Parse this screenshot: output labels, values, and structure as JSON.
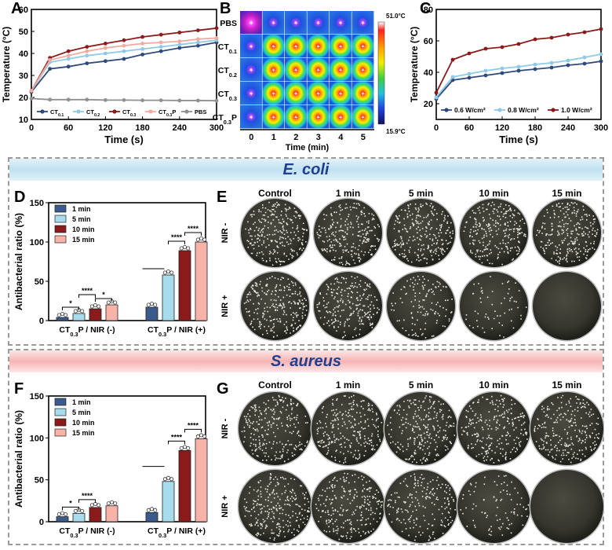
{
  "panels": {
    "A": "A",
    "B": "B",
    "C": "C",
    "D": "D",
    "E": "E",
    "F": "F",
    "G": "G"
  },
  "banners": {
    "ecoli": "E. coli",
    "saureus": "S. aureus"
  },
  "plate_grid": {
    "columns": [
      "Control",
      "1 min",
      "5 min",
      "10 min",
      "15 min"
    ],
    "rows": [
      "NIR -",
      "NIR +"
    ],
    "ecoli_density": [
      [
        260,
        250,
        250,
        250,
        250
      ],
      [
        250,
        230,
        130,
        60,
        0
      ]
    ],
    "saureus_density": [
      [
        250,
        250,
        250,
        240,
        240
      ],
      [
        250,
        240,
        190,
        90,
        0
      ]
    ]
  },
  "thermal": {
    "rows": [
      "PBS",
      "CT0.1",
      "CT0.2",
      "CT0.3",
      "CT0.3P"
    ],
    "times": [
      "0",
      "1",
      "2",
      "3",
      "4",
      "5"
    ],
    "xlabel": "Time (min)",
    "scale_max": "51.0°C",
    "scale_min": "15.9°C"
  },
  "chart_data": [
    {
      "id": "A",
      "type": "line",
      "title": "",
      "xlabel": "Time (s)",
      "ylabel": "Temperature (°C)",
      "xlim": [
        0,
        300
      ],
      "ylim": [
        10,
        60
      ],
      "xticks": [
        0,
        60,
        120,
        180,
        240,
        300
      ],
      "yticks": [
        10,
        20,
        30,
        40,
        50,
        60
      ],
      "x": [
        0,
        30,
        60,
        90,
        120,
        150,
        180,
        210,
        240,
        270,
        300
      ],
      "series": [
        {
          "name": "CT0.1",
          "color": "#2e4a7a",
          "values": [
            22.5,
            33,
            34,
            35.5,
            36.5,
            37.5,
            39.5,
            41,
            42.5,
            43.5,
            45
          ]
        },
        {
          "name": "CT0.2",
          "color": "#8ecae6",
          "values": [
            23,
            36,
            37.5,
            39,
            40,
            41,
            42,
            43,
            44,
            45,
            46
          ]
        },
        {
          "name": "CT0.3",
          "color": "#8b1a1a",
          "values": [
            23,
            38,
            41,
            43,
            44.5,
            46,
            47.5,
            48.5,
            49.5,
            50.5,
            51.5
          ]
        },
        {
          "name": "CT0.3P",
          "color": "#f4a9a0",
          "values": [
            23,
            37,
            39,
            41,
            42.5,
            43.5,
            44.5,
            45,
            45.5,
            46.5,
            47
          ]
        },
        {
          "name": "PBS",
          "color": "#909090",
          "values": [
            19.5,
            19,
            19,
            19,
            18.8,
            18.8,
            18.7,
            18.7,
            18.6,
            18.6,
            18.5
          ]
        }
      ],
      "legend": "bottom"
    },
    {
      "id": "C",
      "type": "line",
      "title": "",
      "xlabel": "Time (s)",
      "ylabel": "Temperature (°C)",
      "xlim": [
        0,
        300
      ],
      "ylim": [
        10,
        80
      ],
      "xticks": [
        0,
        60,
        120,
        180,
        240,
        300
      ],
      "yticks": [
        20,
        40,
        60,
        80
      ],
      "x": [
        0,
        30,
        60,
        90,
        120,
        150,
        180,
        210,
        240,
        270,
        300
      ],
      "series": [
        {
          "name": "0.6 W/cm²",
          "color": "#2e4a7a",
          "values": [
            23,
            35,
            36.5,
            38,
            39.5,
            41,
            42,
            43,
            44.5,
            45.5,
            47
          ]
        },
        {
          "name": "0.8 W/cm²",
          "color": "#8ecae6",
          "values": [
            24,
            37,
            39,
            41,
            42.5,
            43.5,
            45,
            46,
            47.5,
            49.5,
            51.5
          ]
        },
        {
          "name": "1.0 W/cm²",
          "color": "#8b1a1a",
          "values": [
            27,
            48,
            52,
            55,
            56,
            58,
            61,
            62,
            64,
            65.5,
            67.5
          ]
        }
      ],
      "legend": "bottom"
    },
    {
      "id": "D",
      "type": "bar",
      "title": "",
      "ylabel": "Antibacterial ratio (%)",
      "ylim": [
        0,
        150
      ],
      "yticks": [
        0,
        50,
        100,
        150
      ],
      "categories": [
        "CT0.3P / NIR (-)",
        "CT0.3P / NIR (+)"
      ],
      "series": [
        {
          "name": "1 min",
          "color": "#3b5b8c",
          "values": [
            4,
            17
          ]
        },
        {
          "name": "5 min",
          "color": "#a6dceb",
          "values": [
            9,
            58
          ]
        },
        {
          "name": "10 min",
          "color": "#8b1a1a",
          "values": [
            15,
            89
          ]
        },
        {
          "name": "15 min",
          "color": "#f7b3a7",
          "values": [
            20,
            100
          ]
        }
      ],
      "significance": [
        "*",
        "****",
        "*",
        "****",
        "****"
      ],
      "legend": "top-left"
    },
    {
      "id": "F",
      "type": "bar",
      "title": "",
      "ylabel": "Antibacterial ratio (%)",
      "ylim": [
        0,
        150
      ],
      "yticks": [
        0,
        50,
        100,
        150
      ],
      "categories": [
        "CT0.3P / NIR (-)",
        "CT0.3P / NIR (+)"
      ],
      "series": [
        {
          "name": "1 min",
          "color": "#3b5b8c",
          "values": [
            6,
            11
          ]
        },
        {
          "name": "5 min",
          "color": "#a6dceb",
          "values": [
            10,
            48
          ]
        },
        {
          "name": "10 min",
          "color": "#8b1a1a",
          "values": [
            17,
            85
          ]
        },
        {
          "name": "15 min",
          "color": "#f7b3a7",
          "values": [
            19,
            99
          ]
        }
      ],
      "significance": [
        "*",
        "****",
        "****",
        "****"
      ],
      "legend": "top-left"
    }
  ]
}
